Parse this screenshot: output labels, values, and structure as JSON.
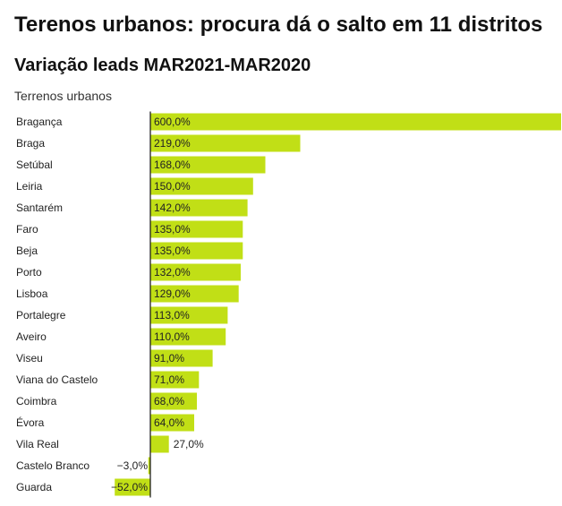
{
  "chart_data": {
    "type": "bar",
    "orientation": "horizontal",
    "title": "Terenos urbanos: procura dá o salto em 11 distritos",
    "subtitle": "Variação leads MAR2021-MAR2020",
    "series_label": "Terrenos urbanos",
    "bar_color": "#c1df16",
    "categories": [
      "Bragança",
      "Braga",
      "Setúbal",
      "Leiria",
      "Santarém",
      "Faro",
      "Beja",
      "Porto",
      "Lisboa",
      "Portalegre",
      "Aveiro",
      "Viseu",
      "Viana do Castelo",
      "Coimbra",
      "Évora",
      "Vila Real",
      "Castelo Branco",
      "Guarda"
    ],
    "values": [
      600,
      219,
      168,
      150,
      142,
      135,
      135,
      132,
      129,
      113,
      110,
      91,
      71,
      68,
      64,
      27,
      -3,
      -52
    ],
    "value_labels": [
      "600,0%",
      "219,0%",
      "168,0%",
      "150,0%",
      "142,0%",
      "135,0%",
      "135,0%",
      "132,0%",
      "129,0%",
      "113,0%",
      "110,0%",
      "91,0%",
      "71,0%",
      "68,0%",
      "64,0%",
      "27,0%",
      "−3,0%",
      "−52,0%"
    ],
    "xlim": [
      -52,
      600
    ]
  }
}
